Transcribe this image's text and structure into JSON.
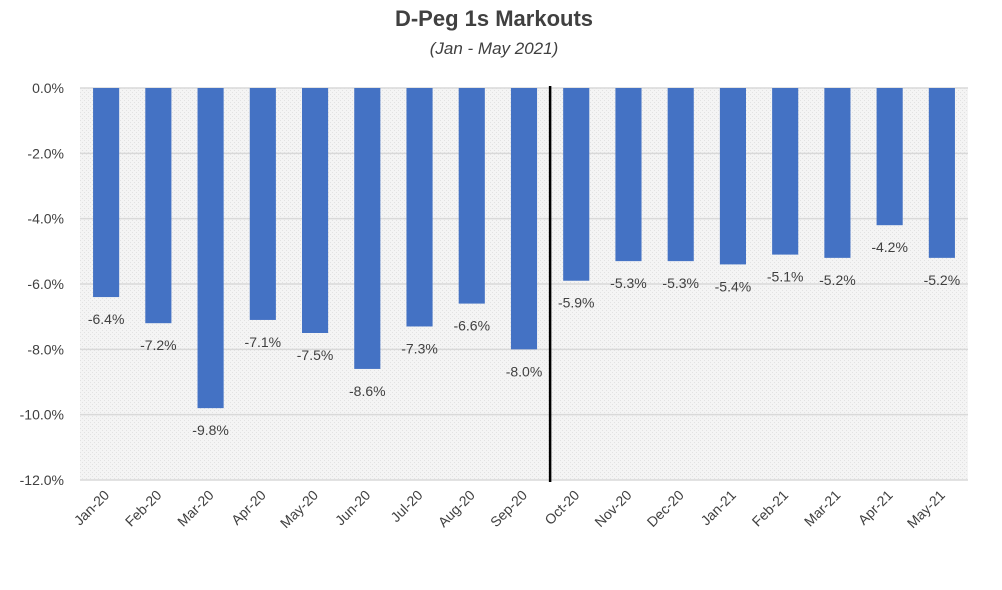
{
  "chart_data": {
    "type": "bar",
    "title": "D-Peg 1s Markouts",
    "subtitle": "(Jan - May 2021)",
    "xlabel": "",
    "ylabel": "",
    "categories": [
      "Jan-20",
      "Feb-20",
      "Mar-20",
      "Apr-20",
      "May-20",
      "Jun-20",
      "Jul-20",
      "Aug-20",
      "Sep-20",
      "Oct-20",
      "Nov-20",
      "Dec-20",
      "Jan-21",
      "Feb-21",
      "Mar-21",
      "Apr-21",
      "May-21"
    ],
    "values": [
      -6.4,
      -7.2,
      -9.8,
      -7.1,
      -7.5,
      -8.6,
      -7.3,
      -6.6,
      -8.0,
      -5.9,
      -5.3,
      -5.3,
      -5.4,
      -5.1,
      -5.2,
      -4.2,
      -5.2
    ],
    "data_labels": [
      "-6.4%",
      "-7.2%",
      "-9.8%",
      "-7.1%",
      "-7.5%",
      "-8.6%",
      "-7.3%",
      "-6.6%",
      "-8.0%",
      "-5.9%",
      "-5.3%",
      "-5.3%",
      "-5.4%",
      "-5.1%",
      "-5.2%",
      "-4.2%",
      "-5.2%"
    ],
    "ylim": [
      -12,
      0
    ],
    "yticks": [
      0,
      -2,
      -4,
      -6,
      -8,
      -10,
      -12
    ],
    "ytick_labels": [
      "0.0%",
      "-2.0%",
      "-4.0%",
      "-6.0%",
      "-8.0%",
      "-10.0%",
      "-12.0%"
    ],
    "divider_between": [
      "Sep-20",
      "Oct-20"
    ],
    "grid": true,
    "legend": "none",
    "colors": {
      "bar": "#4472c4",
      "grid": "#d9d9d9",
      "plot_bg": "#f2f2f2",
      "text": "#404040",
      "divider": "#000000"
    }
  }
}
